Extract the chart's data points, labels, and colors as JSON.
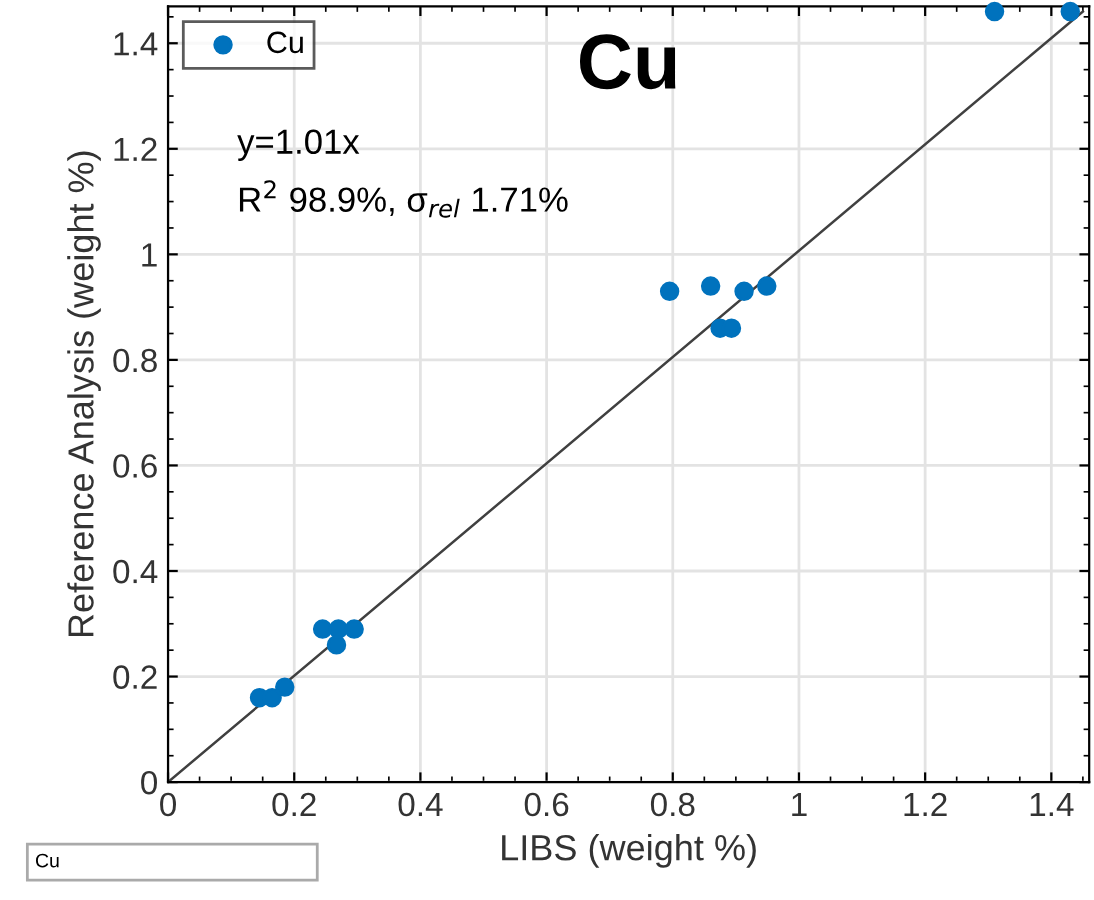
{
  "chart_data": {
    "type": "scatter",
    "title": "Cu",
    "xlabel": "LIBS (weight %)",
    "ylabel": "Reference Analysis (weight %)",
    "annotations": [
      "y=1.01x",
      "R$^{2}$ 98.9%, σ$_{rel}$ 1.71%",
      "Cu"
    ],
    "series": [
      {
        "name": "Cu",
        "color": "#0072bd",
        "marker": "circle",
        "x": [
          0.145,
          0.165,
          0.185,
          0.245,
          0.27,
          0.295,
          0.267,
          0.795,
          0.86,
          0.875,
          0.893,
          0.913,
          0.949,
          1.31,
          1.43
        ],
        "values": [
          0.16,
          0.16,
          0.18,
          0.29,
          0.29,
          0.29,
          0.26,
          0.93,
          0.94,
          0.86,
          0.86,
          0.93,
          0.94,
          1.46,
          1.46
        ]
      },
      {
        "type": "line",
        "color": "#404040",
        "marker": "none",
        "x": [
          0,
          1.45
        ],
        "values": [
          0,
          1.46
        ]
      }
    ],
    "xlim": [
      0,
      1.46
    ],
    "ylim": [
      0,
      1.47
    ],
    "xticks": [
      0,
      0.2,
      0.4,
      0.6,
      0.8,
      1,
      1.2,
      1.4
    ],
    "yticks": [
      0,
      0.2,
      0.4,
      0.6,
      0.8,
      1,
      1.2,
      1.4
    ],
    "grid": true,
    "legend": "top left"
  }
}
